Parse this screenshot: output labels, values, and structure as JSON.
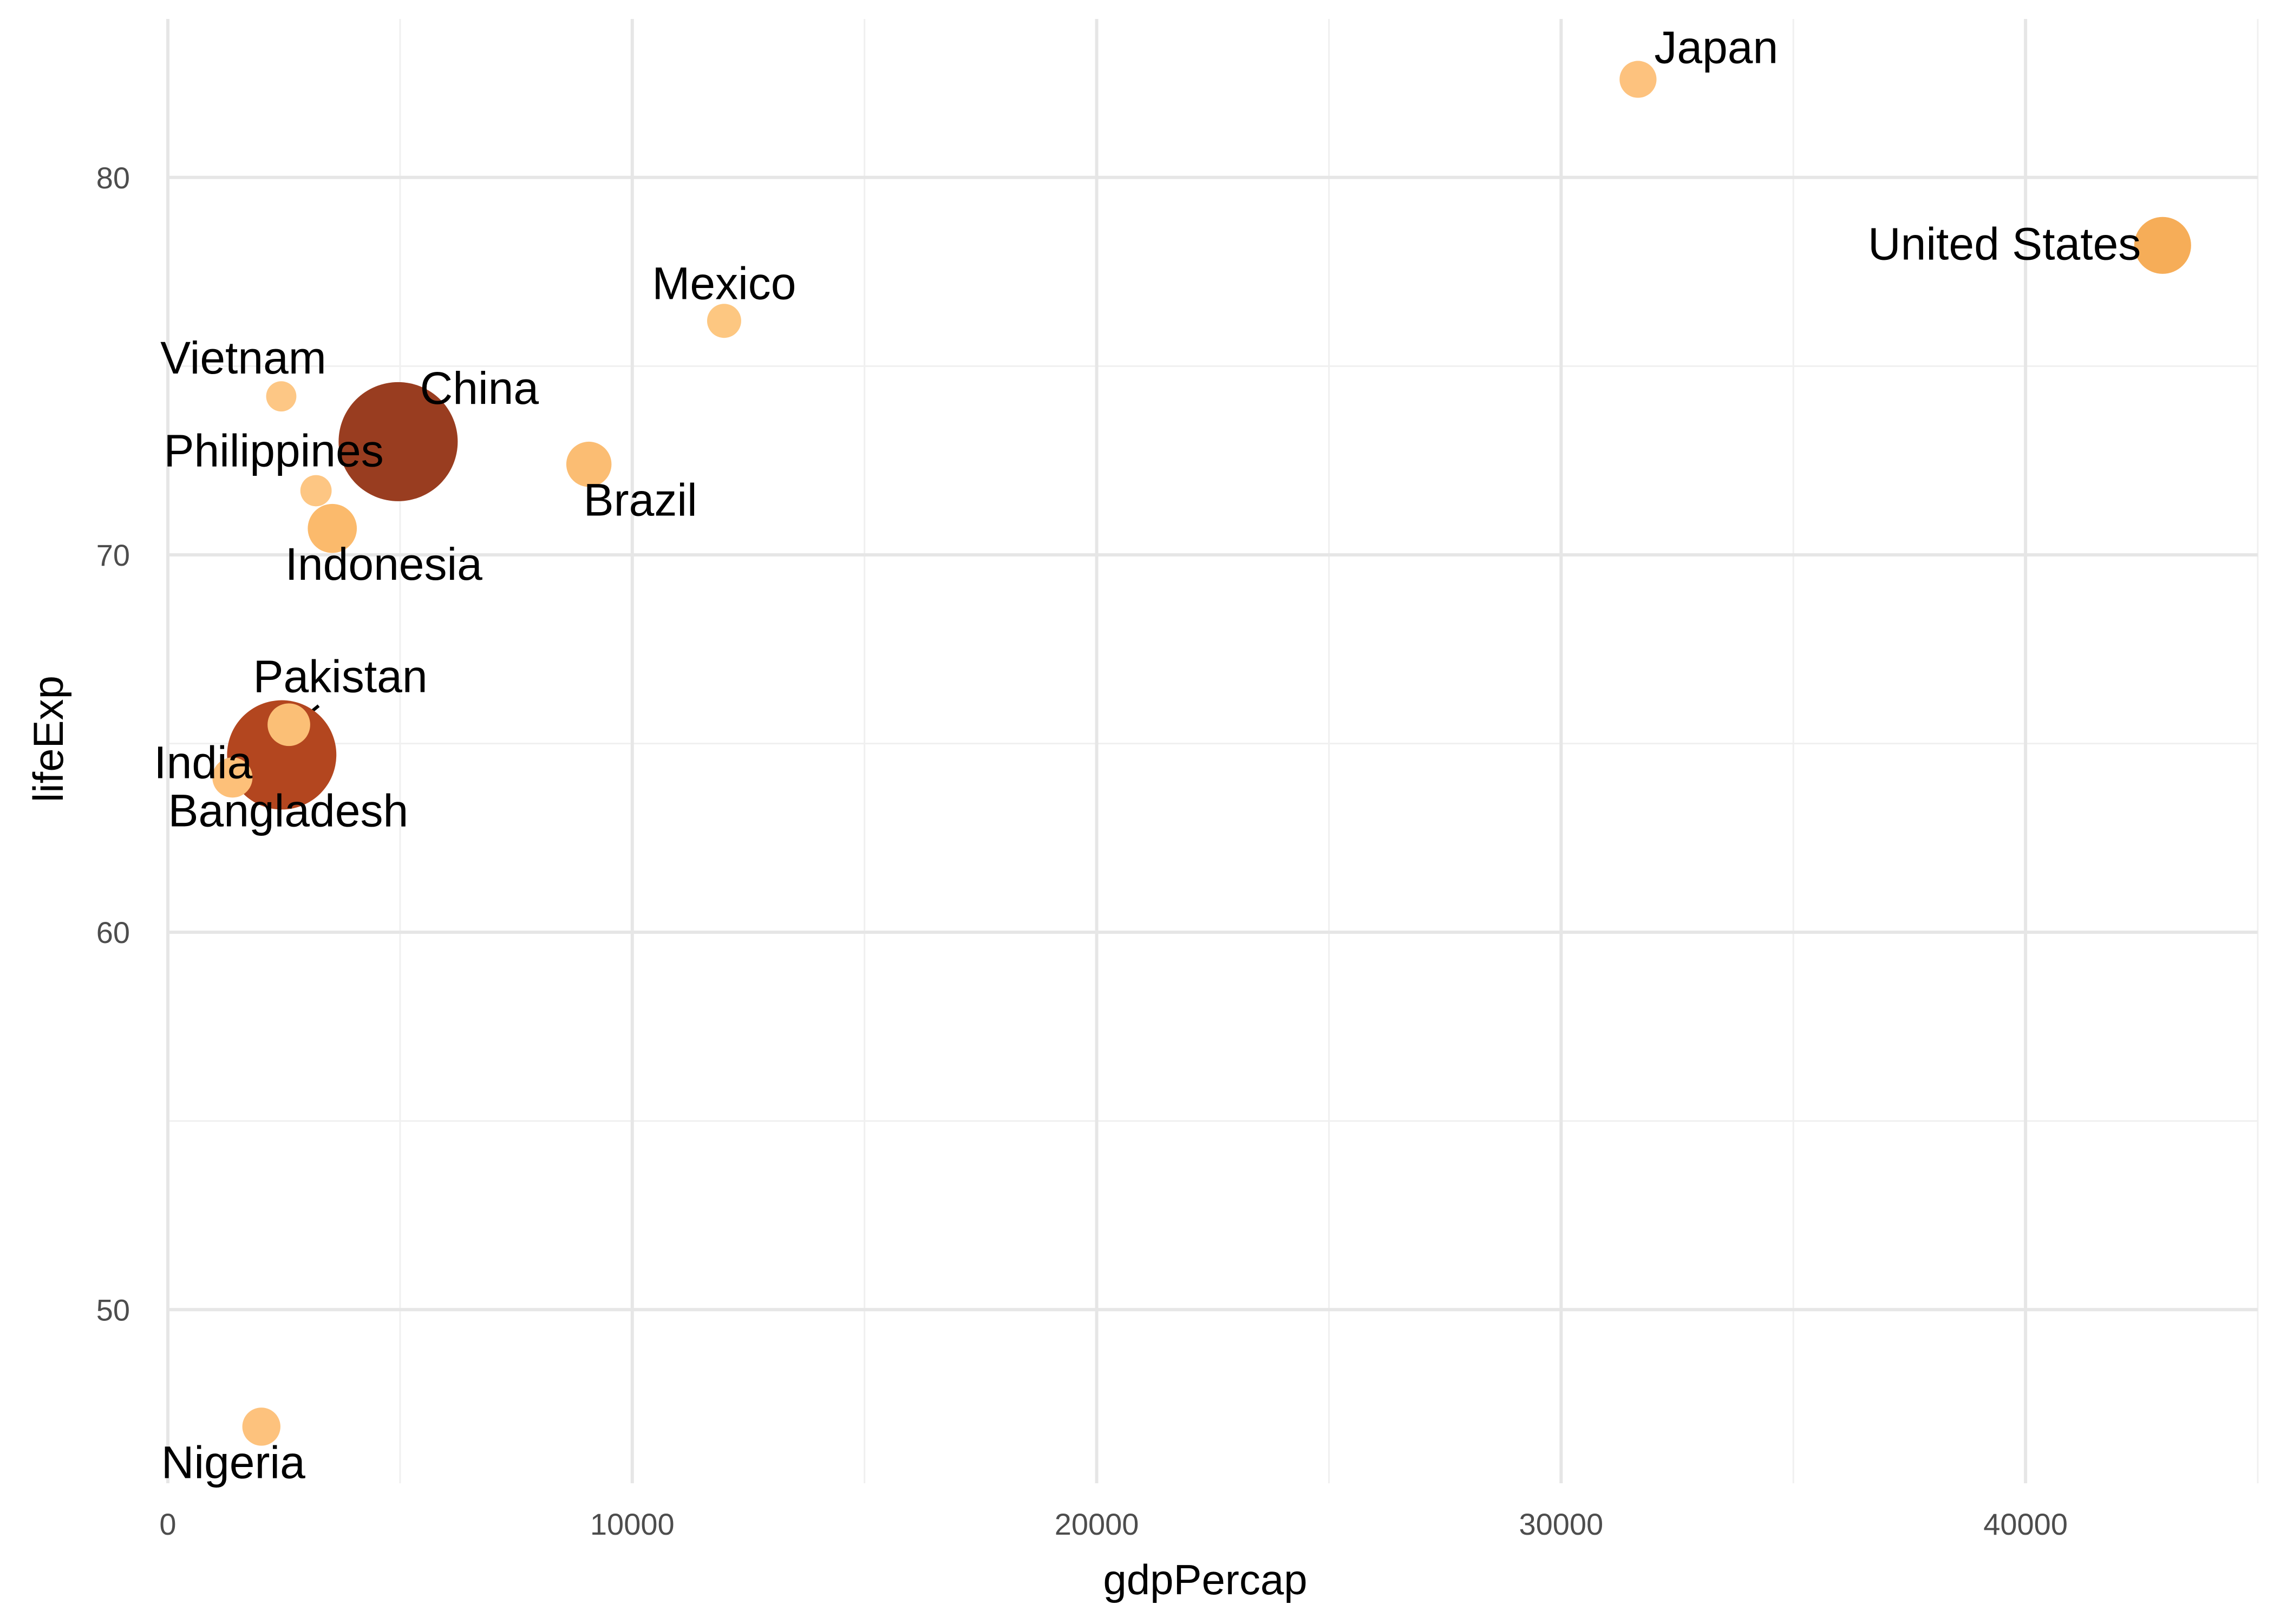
{
  "chart_data": {
    "type": "scatter",
    "title": "",
    "xlabel": "gdpPercap",
    "ylabel": "lifeExp",
    "xlim": [
      0,
      45000
    ],
    "ylim": [
      45.4,
      84.2
    ],
    "x_ticks": [
      0,
      10000,
      20000,
      30000,
      40000
    ],
    "y_ticks": [
      50,
      60,
      70,
      80
    ],
    "grid": true,
    "legend": "none",
    "size_encodes": "pop",
    "color_encodes": "pop",
    "points": [
      {
        "label": "Japan",
        "x": 31656,
        "y": 82.6,
        "pop": 127000000,
        "color": "#fdc27e"
      },
      {
        "label": "United States",
        "x": 42952,
        "y": 78.2,
        "pop": 301000000,
        "color": "#f6ad58"
      },
      {
        "label": "Mexico",
        "x": 11978,
        "y": 76.2,
        "pop": 108000000,
        "color": "#fdc781"
      },
      {
        "label": "Vietnam",
        "x": 2442,
        "y": 74.2,
        "pop": 85000000,
        "color": "#fdc785"
      },
      {
        "label": "China",
        "x": 4959,
        "y": 73.0,
        "pop": 1319000000,
        "color": "#993d20"
      },
      {
        "label": "Philippines",
        "x": 3190,
        "y": 71.7,
        "pop": 91000000,
        "color": "#fdc683"
      },
      {
        "label": "Brazil",
        "x": 9066,
        "y": 72.4,
        "pop": 190000000,
        "color": "#fbbd73"
      },
      {
        "label": "Indonesia",
        "x": 3541,
        "y": 70.7,
        "pop": 224000000,
        "color": "#fbba6c"
      },
      {
        "label": "Pakistan",
        "x": 2606,
        "y": 65.5,
        "pop": 169000000,
        "color": "#fbbf76"
      },
      {
        "label": "India",
        "x": 2452,
        "y": 64.7,
        "pop": 1110000000,
        "color": "#b3461f"
      },
      {
        "label": "Bangladesh",
        "x": 1391,
        "y": 64.1,
        "pop": 150000000,
        "color": "#fdc079"
      },
      {
        "label": "Nigeria",
        "x": 2014,
        "y": 46.9,
        "pop": 135000000,
        "color": "#fdc27d"
      }
    ]
  }
}
